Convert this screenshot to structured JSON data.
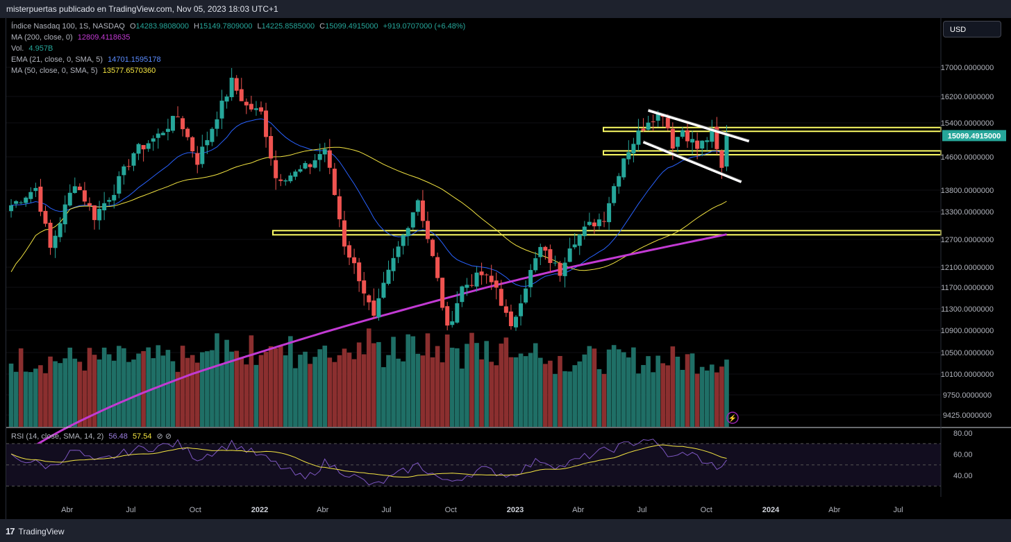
{
  "header": {
    "title": "misterpuertas publicado en TradingView.com, Nov 05, 2023 18:03 UTC+1"
  },
  "footer": {
    "brand": "TradingView"
  },
  "currency_button": "USD",
  "legend": {
    "symbol": "Índice Nasdaq 100, 1S, NASDAQ",
    "o_label": "O",
    "o_value": "14283.9808000",
    "h_label": "H",
    "h_value": "15149.7809000",
    "l_label": "L",
    "l_value": "14225.8585000",
    "c_label": "C",
    "c_value": "15099.4915000",
    "change": "+919.0707000 (+6.48%)",
    "ma200_label": "MA (200, close, 0)",
    "ma200_value": "12809.4118635",
    "vol_label": "Vol.",
    "vol_value": "4.957B",
    "ema21_label": "EMA (21, close, 0, SMA, 5)",
    "ema21_value": "14701.1595178",
    "ma50_label": "MA (50, close, 0, SMA, 5)",
    "ma50_value": "13577.6570360",
    "rsi_label": "RSI (14, close, SMA, 14, 2)",
    "rsi_value": "56.48",
    "rsi_ma_value": "57.54"
  },
  "colors": {
    "up": "#26a69a",
    "down": "#ef5350",
    "up_vol": "#1f6f66",
    "down_vol": "#8b2f2f",
    "ema21": "#2962ff",
    "ma50": "#f5e642",
    "ma200": "#c23ad3",
    "rsi": "#7e57c2",
    "rsi_ma": "#f5e642",
    "hlines": "#ffff66",
    "channel": "#ffffff",
    "last_price_bg": "#26a69a"
  },
  "chart_data": {
    "type": "candlestick",
    "timeframe": "1 week",
    "price_axis_ticks": [
      "17000.0000000",
      "16200.0000000",
      "15400.0000000",
      "14600.0000000",
      "13800.0000000",
      "13300.0000000",
      "12700.0000000",
      "12100.0000000",
      "11700.0000000",
      "11300.0000000",
      "10900.0000000",
      "10500.0000000",
      "10100.0000000",
      "9750.0000000",
      "9425.0000000"
    ],
    "time_axis_ticks": [
      "Abr",
      "Jul",
      "Oct",
      "2022",
      "Abr",
      "Jul",
      "Oct",
      "2023",
      "Abr",
      "Jul",
      "Oct",
      "2024",
      "Abr",
      "Jul"
    ],
    "last_price_label": "15099.4915000",
    "rsi_axis_ticks": [
      "80.00",
      "60.00",
      "40.00"
    ],
    "horizontal_levels": [
      [
        15200,
        15290
      ],
      [
        14650,
        14740
      ],
      [
        12800,
        12890
      ]
    ],
    "channel": {
      "upper": [
        [
          "2023-07-10",
          15780
        ],
        [
          "2023-12-01",
          14970
        ]
      ],
      "lower": [
        [
          "2023-07-03",
          14950
        ],
        [
          "2023-11-20",
          14000
        ]
      ]
    },
    "anchors": [
      [
        "2021-01-11",
        13450
      ],
      [
        "2021-02-15",
        13850
      ],
      [
        "2021-03-08",
        12500
      ],
      [
        "2021-04-12",
        14000
      ],
      [
        "2021-05-10",
        13200
      ],
      [
        "2021-06-07",
        13800
      ],
      [
        "2021-07-05",
        14700
      ],
      [
        "2021-08-09",
        15100
      ],
      [
        "2021-09-06",
        15600
      ],
      [
        "2021-10-04",
        14500
      ],
      [
        "2021-10-25",
        15300
      ],
      [
        "2021-11-22",
        16600
      ],
      [
        "2021-12-13",
        15900
      ],
      [
        "2022-01-03",
        15700
      ],
      [
        "2022-01-24",
        14100
      ],
      [
        "2022-02-21",
        14200
      ],
      [
        "2022-03-14",
        14400
      ],
      [
        "2022-04-04",
        14800
      ],
      [
        "2022-05-02",
        12600
      ],
      [
        "2022-05-23",
        11900
      ],
      [
        "2022-06-13",
        11100
      ],
      [
        "2022-06-27",
        11700
      ],
      [
        "2022-08-15",
        13600
      ],
      [
        "2022-09-05",
        12300
      ],
      [
        "2022-09-26",
        10900
      ],
      [
        "2022-10-17",
        11700
      ],
      [
        "2022-11-14",
        11950
      ],
      [
        "2022-12-05",
        11700
      ],
      [
        "2022-12-26",
        10900
      ],
      [
        "2023-01-09",
        11500
      ],
      [
        "2023-02-06",
        12500
      ],
      [
        "2023-03-06",
        12000
      ],
      [
        "2023-03-20",
        12600
      ],
      [
        "2023-04-17",
        13000
      ],
      [
        "2023-05-08",
        13200
      ],
      [
        "2023-06-05",
        14600
      ],
      [
        "2023-07-10",
        15500
      ],
      [
        "2023-07-31",
        15700
      ],
      [
        "2023-08-14",
        14900
      ],
      [
        "2023-08-28",
        15250
      ],
      [
        "2023-09-18",
        14800
      ],
      [
        "2023-10-09",
        15150
      ],
      [
        "2023-10-23",
        14300
      ],
      [
        "2023-10-30",
        15099
      ]
    ],
    "rsi_anchors": [
      [
        "2021-01-11",
        58
      ],
      [
        "2021-03-08",
        48
      ],
      [
        "2021-04-12",
        64
      ],
      [
        "2021-05-10",
        52
      ],
      [
        "2021-07-05",
        64
      ],
      [
        "2021-09-06",
        70
      ],
      [
        "2021-10-04",
        56
      ],
      [
        "2021-11-22",
        70
      ],
      [
        "2022-01-03",
        58
      ],
      [
        "2022-03-07",
        36
      ],
      [
        "2022-04-04",
        52
      ],
      [
        "2022-06-13",
        30
      ],
      [
        "2022-08-15",
        50
      ],
      [
        "2022-09-26",
        33
      ],
      [
        "2022-11-14",
        46
      ],
      [
        "2022-12-26",
        40
      ],
      [
        "2023-02-06",
        55
      ],
      [
        "2023-03-06",
        48
      ],
      [
        "2023-04-17",
        59
      ],
      [
        "2023-07-10",
        75
      ],
      [
        "2023-08-14",
        56
      ],
      [
        "2023-09-04",
        62
      ],
      [
        "2023-10-23",
        45
      ],
      [
        "2023-10-30",
        57
      ]
    ]
  }
}
